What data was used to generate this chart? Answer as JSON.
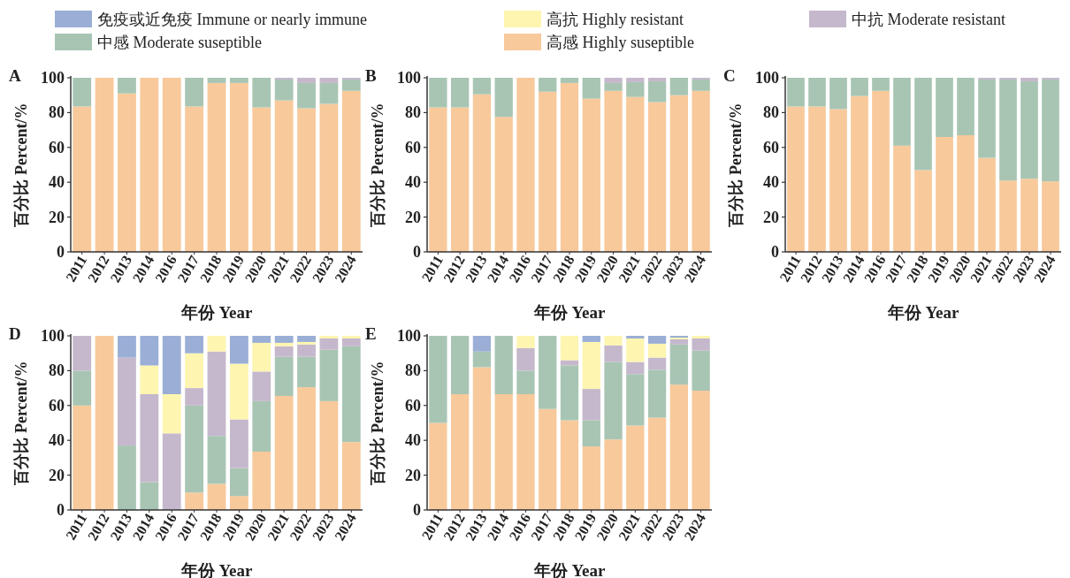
{
  "chart_data": [
    {
      "type": "bar",
      "stacked": true,
      "title": "A",
      "xlabel": "年份 Year",
      "ylabel": "百分比 Percent/%",
      "legend": "top",
      "ylim": [
        0,
        100
      ],
      "yticks": [
        0,
        20,
        40,
        60,
        80,
        100
      ],
      "categories": [
        "2011",
        "2012",
        "2013",
        "2014",
        "2016",
        "2017",
        "2018",
        "2019",
        "2020",
        "2021",
        "2022",
        "2023",
        "2024"
      ],
      "series": [
        {
          "name": "高感 Highly suseptible",
          "color": "#f8c99b",
          "values": [
            83.5,
            100,
            91,
            100,
            100,
            83.5,
            97,
            97,
            83,
            87,
            82.5,
            85,
            92.5
          ]
        },
        {
          "name": "中感 Moderate suseptible",
          "color": "#a8c5b3",
          "values": [
            16.5,
            0,
            9,
            0,
            0,
            16.5,
            3,
            3,
            17,
            12,
            14.5,
            12,
            6.5
          ]
        },
        {
          "name": "中抗 Moderate resistant",
          "color": "#c5b8cc",
          "values": [
            0,
            0,
            0,
            0,
            0,
            0,
            0,
            0,
            0,
            1,
            3,
            3,
            1
          ]
        },
        {
          "name": "高抗 Highly resistant",
          "color": "#fdf5b0",
          "values": [
            0,
            0,
            0,
            0,
            0,
            0,
            0,
            0,
            0,
            0,
            0,
            0,
            0
          ]
        },
        {
          "name": "免疫或近免疫 Immune or nearly immune",
          "color": "#9aaed6",
          "values": [
            0,
            0,
            0,
            0,
            0,
            0,
            0,
            0,
            0,
            0,
            0,
            0,
            0
          ]
        }
      ]
    },
    {
      "type": "bar",
      "stacked": true,
      "title": "B",
      "xlabel": "年份 Year",
      "ylabel": "百分比 Percent/%",
      "ylim": [
        0,
        100
      ],
      "yticks": [
        0,
        20,
        40,
        60,
        80,
        100
      ],
      "categories": [
        "2011",
        "2012",
        "2013",
        "2014",
        "2016",
        "2017",
        "2018",
        "2019",
        "2020",
        "2021",
        "2022",
        "2023",
        "2024"
      ],
      "series": [
        {
          "color": "#f8c99b",
          "values": [
            83,
            83,
            90.5,
            77.5,
            100,
            92,
            97,
            88,
            92.5,
            89,
            86,
            90,
            92.5
          ]
        },
        {
          "color": "#a8c5b3",
          "values": [
            17,
            17,
            9.5,
            22.5,
            0,
            8,
            3,
            12,
            4.5,
            8.5,
            12,
            10,
            6.5
          ]
        },
        {
          "color": "#c5b8cc",
          "values": [
            0,
            0,
            0,
            0,
            0,
            0,
            0,
            0,
            3,
            2.5,
            2,
            0,
            1
          ]
        }
      ]
    },
    {
      "type": "bar",
      "stacked": true,
      "title": "C",
      "xlabel": "年份 Year",
      "ylabel": "百分比 Percent/%",
      "ylim": [
        0,
        100
      ],
      "yticks": [
        0,
        20,
        40,
        60,
        80,
        100
      ],
      "categories": [
        "2011",
        "2012",
        "2013",
        "2014",
        "2016",
        "2017",
        "2018",
        "2019",
        "2020",
        "2021",
        "2022",
        "2023",
        "2024"
      ],
      "series": [
        {
          "color": "#f8c99b",
          "values": [
            83.5,
            83.5,
            82,
            89.5,
            92.5,
            61,
            47,
            66,
            67,
            54,
            41,
            42,
            40.5
          ]
        },
        {
          "color": "#a8c5b3",
          "values": [
            16.5,
            16.5,
            18,
            10.5,
            7.5,
            39,
            53,
            34,
            33,
            45,
            58,
            56,
            58.5
          ]
        },
        {
          "color": "#c5b8cc",
          "values": [
            0,
            0,
            0,
            0,
            0,
            0,
            0,
            0,
            0,
            1,
            1,
            2,
            1
          ]
        }
      ]
    },
    {
      "type": "bar",
      "stacked": true,
      "title": "D",
      "xlabel": "年份 Year",
      "ylabel": "百分比 Percent/%",
      "ylim": [
        0,
        100
      ],
      "yticks": [
        0,
        20,
        40,
        60,
        80,
        100
      ],
      "categories": [
        "2011",
        "2012",
        "2013",
        "2014",
        "2016",
        "2017",
        "2018",
        "2019",
        "2020",
        "2021",
        "2022",
        "2023",
        "2024"
      ],
      "series": [
        {
          "color": "#f8c99b",
          "values": [
            60,
            100,
            0,
            0,
            0,
            10,
            15,
            8,
            33.5,
            65.5,
            70.5,
            62.5,
            39
          ]
        },
        {
          "color": "#a8c5b3",
          "values": [
            20,
            0,
            37,
            16,
            0,
            50,
            27.5,
            16,
            29,
            22.5,
            17.5,
            29.5,
            55
          ]
        },
        {
          "color": "#c5b8cc",
          "values": [
            20,
            0,
            50.5,
            50.5,
            44,
            10,
            48.5,
            28,
            17,
            6,
            7,
            6.5,
            4.5
          ]
        },
        {
          "color": "#fdf5b0",
          "values": [
            0,
            0,
            0,
            16.5,
            22.5,
            20,
            9,
            32,
            16.5,
            2,
            1.5,
            1.5,
            1.5
          ]
        },
        {
          "color": "#9aaed6",
          "values": [
            0,
            0,
            12.5,
            17,
            33.5,
            10,
            0,
            16,
            4,
            4,
            3.5,
            0,
            0
          ]
        }
      ]
    },
    {
      "type": "bar",
      "stacked": true,
      "title": "E",
      "xlabel": "年份 Year",
      "ylabel": "百分比 Percent/%",
      "ylim": [
        0,
        100
      ],
      "yticks": [
        0,
        20,
        40,
        60,
        80,
        100
      ],
      "categories": [
        "2011",
        "2012",
        "2013",
        "2014",
        "2016",
        "2017",
        "2018",
        "2019",
        "2020",
        "2021",
        "2022",
        "2023",
        "2024"
      ],
      "series": [
        {
          "color": "#f8c99b",
          "values": [
            50,
            66.5,
            82,
            66.5,
            66.5,
            58,
            51.5,
            36.5,
            40.5,
            48.5,
            53,
            72,
            68.5
          ]
        },
        {
          "color": "#a8c5b3",
          "values": [
            50,
            33.5,
            9,
            33.5,
            13.5,
            42,
            31.5,
            15,
            44.5,
            29.5,
            27.5,
            23,
            23
          ]
        },
        {
          "color": "#c5b8cc",
          "values": [
            0,
            0,
            0,
            0,
            13,
            0,
            3,
            18,
            9.5,
            7,
            7,
            3,
            7
          ]
        },
        {
          "color": "#fdf5b0",
          "values": [
            0,
            0,
            0,
            0,
            7,
            0,
            14,
            27,
            5.5,
            13.5,
            8,
            1,
            1.5
          ]
        },
        {
          "color": "#9aaed6",
          "values": [
            0,
            0,
            9,
            0,
            0,
            0,
            0,
            3.5,
            0,
            1.5,
            4.5,
            1,
            0
          ]
        }
      ]
    }
  ]
}
